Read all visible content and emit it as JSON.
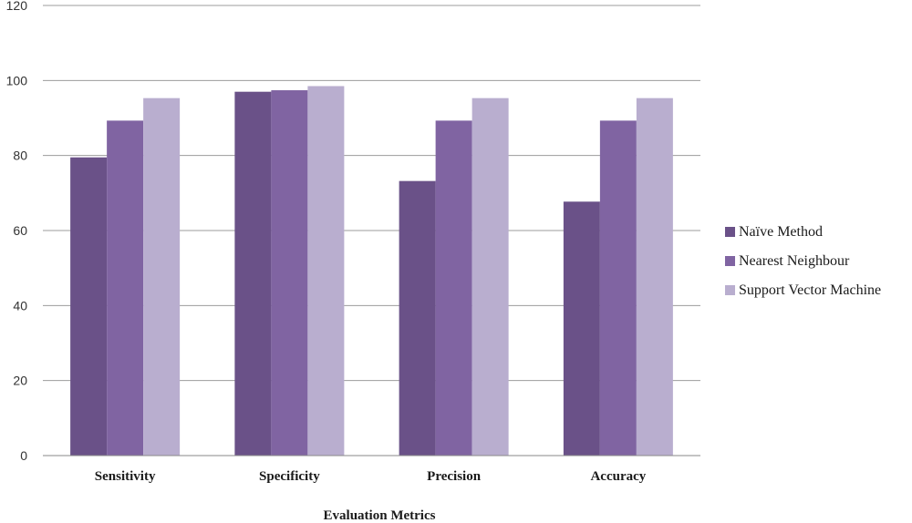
{
  "chart_data": {
    "type": "bar",
    "categories": [
      "Sensitivity",
      "Specificity",
      "Precision",
      "Accuracy"
    ],
    "series": [
      {
        "name": "Naïve Method",
        "values": [
          79.5,
          97,
          73.2,
          67.7
        ],
        "color": "#6a5188"
      },
      {
        "name": "Nearest Neighbour",
        "values": [
          89.3,
          97.4,
          89.3,
          89.3
        ],
        "color": "#8064a2"
      },
      {
        "name": "Support Vector Machine",
        "values": [
          95.3,
          98.5,
          95.3,
          95.3
        ],
        "color": "#b9aecf"
      }
    ],
    "title": "",
    "xlabel": "Evaluation Metrics",
    "ylabel": "",
    "ylim": [
      0,
      120
    ],
    "yticks": [
      0,
      20,
      40,
      60,
      80,
      100,
      120
    ],
    "grid": true,
    "legend_position": "right"
  }
}
